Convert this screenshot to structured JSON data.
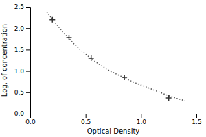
{
  "chart_data": {
    "type": "line",
    "xlabel": "Optical Density",
    "ylabel": "Log. of concentration",
    "series": [
      {
        "type": "line",
        "line_style": "dotted",
        "color": "#555555",
        "x": [
          0.15,
          0.18,
          0.21,
          0.25,
          0.3,
          0.35,
          0.4,
          0.46,
          0.52,
          0.58,
          0.65,
          0.72,
          0.8,
          0.88,
          0.96,
          1.05,
          1.14,
          1.23,
          1.32,
          1.4
        ],
        "values": [
          2.38,
          2.28,
          2.18,
          2.05,
          1.9,
          1.76,
          1.62,
          1.48,
          1.35,
          1.23,
          1.11,
          1.0,
          0.9,
          0.8,
          0.71,
          0.62,
          0.53,
          0.44,
          0.36,
          0.3
        ]
      },
      {
        "type": "scatter",
        "marker": "plus",
        "color": "#333333",
        "x": [
          0.2,
          0.35,
          0.55,
          0.85,
          1.25
        ],
        "values": [
          2.2,
          1.78,
          1.3,
          0.85,
          0.37
        ]
      }
    ],
    "xlim": [
      0,
      1.5
    ],
    "ylim": [
      0,
      2.5
    ],
    "xticks": [
      {
        "value": 0,
        "label": "0.0"
      },
      0.5,
      {
        "value": 1,
        "label": "1.0"
      },
      1.5
    ],
    "yticks": [
      {
        "value": 0,
        "label": "0.0"
      },
      0.5,
      {
        "value": 1,
        "label": "1.0"
      },
      1.5,
      {
        "value": 2,
        "label": "2.0"
      },
      2.5
    ]
  }
}
